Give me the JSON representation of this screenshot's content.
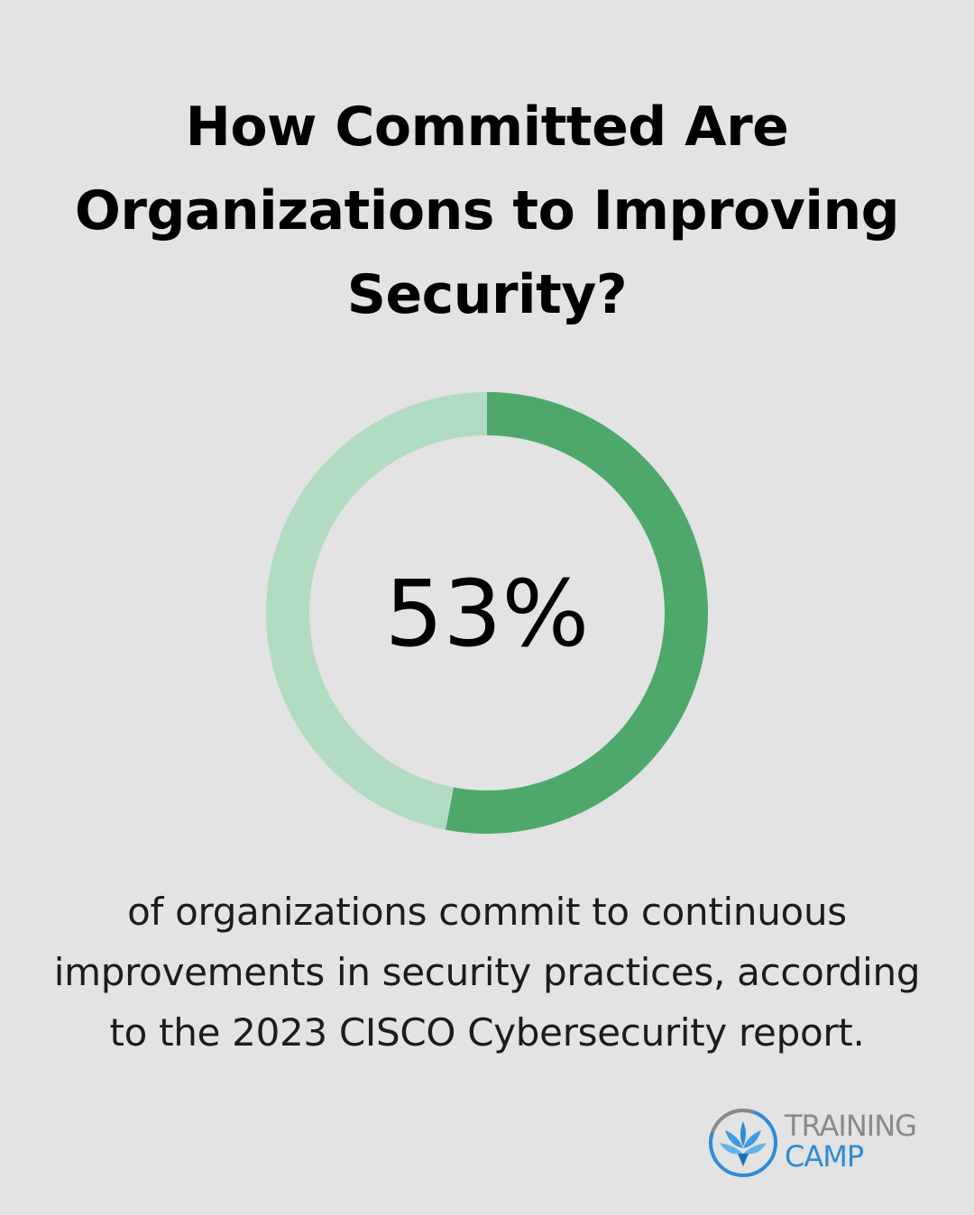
{
  "title_lines": [
    "How Committed Are",
    "Organizations to Improving",
    "Security?"
  ],
  "chart_data": {
    "type": "pie",
    "values": [
      53,
      47
    ],
    "center_label": "53%",
    "colors": {
      "filled": "#4ea86c",
      "remainder": "#b1dcc1"
    }
  },
  "caption_lines": [
    "of organizations commit to continuous",
    "improvements in security practices, according",
    "to the 2023 CISCO Cybersecurity report."
  ],
  "logo": {
    "line1": "TRAINING",
    "line2": "CAMP",
    "colors": {
      "line1": "#8a8a8a",
      "line2": "#2f8bd6"
    }
  }
}
